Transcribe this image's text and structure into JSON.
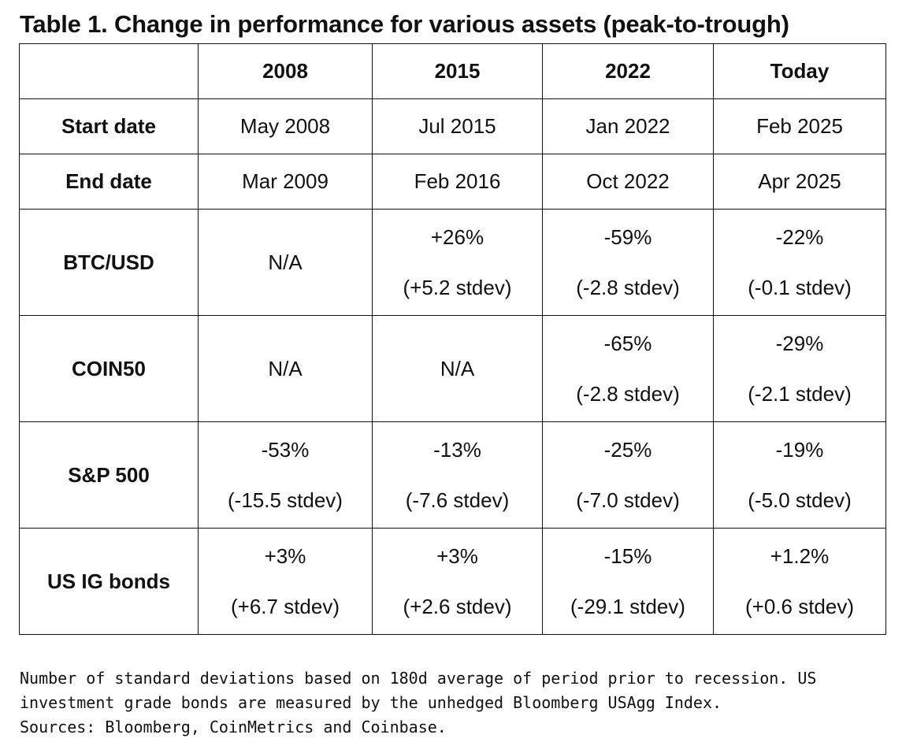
{
  "title": "Table 1. Change in performance for various assets (peak-to-trough)",
  "table": {
    "columns": [
      "",
      "2008",
      "2015",
      "2022",
      "Today"
    ],
    "rows": [
      {
        "label": "Start date",
        "cells": [
          {
            "value": "May 2008"
          },
          {
            "value": "Jul 2015"
          },
          {
            "value": "Jan 2022"
          },
          {
            "value": "Feb 2025"
          }
        ]
      },
      {
        "label": "End date",
        "cells": [
          {
            "value": "Mar 2009"
          },
          {
            "value": "Feb 2016"
          },
          {
            "value": "Oct 2022"
          },
          {
            "value": "Apr 2025"
          }
        ]
      },
      {
        "label": "BTC/USD",
        "cells": [
          {
            "value": "N/A"
          },
          {
            "pct": "+26%",
            "stdev": "(+5.2 stdev)"
          },
          {
            "pct": "-59%",
            "stdev": "(-2.8 stdev)"
          },
          {
            "pct": "-22%",
            "stdev": "(-0.1 stdev)"
          }
        ]
      },
      {
        "label": "COIN50",
        "cells": [
          {
            "value": "N/A"
          },
          {
            "value": "N/A"
          },
          {
            "pct": "-65%",
            "stdev": "(-2.8 stdev)"
          },
          {
            "pct": "-29%",
            "stdev": "(-2.1 stdev)"
          }
        ]
      },
      {
        "label": "S&P 500",
        "cells": [
          {
            "pct": "-53%",
            "stdev": "(-15.5 stdev)"
          },
          {
            "pct": "-13%",
            "stdev": "(-7.6 stdev)"
          },
          {
            "pct": "-25%",
            "stdev": "(-7.0 stdev)"
          },
          {
            "pct": "-19%",
            "stdev": "(-5.0 stdev)"
          }
        ]
      },
      {
        "label": "US IG bonds",
        "cells": [
          {
            "pct": "+3%",
            "stdev": "(+6.7 stdev)"
          },
          {
            "pct": "+3%",
            "stdev": "(+2.6 stdev)"
          },
          {
            "pct": "-15%",
            "stdev": "(-29.1 stdev)"
          },
          {
            "pct": "+1.2%",
            "stdev": "(+0.6 stdev)"
          }
        ]
      }
    ]
  },
  "footnote": [
    "Number of standard deviations based on 180d average of period prior to recession. US",
    "investment grade bonds are measured by the unhedged Bloomberg USAgg Index.",
    "Sources: Bloomberg, CoinMetrics and Coinbase."
  ]
}
